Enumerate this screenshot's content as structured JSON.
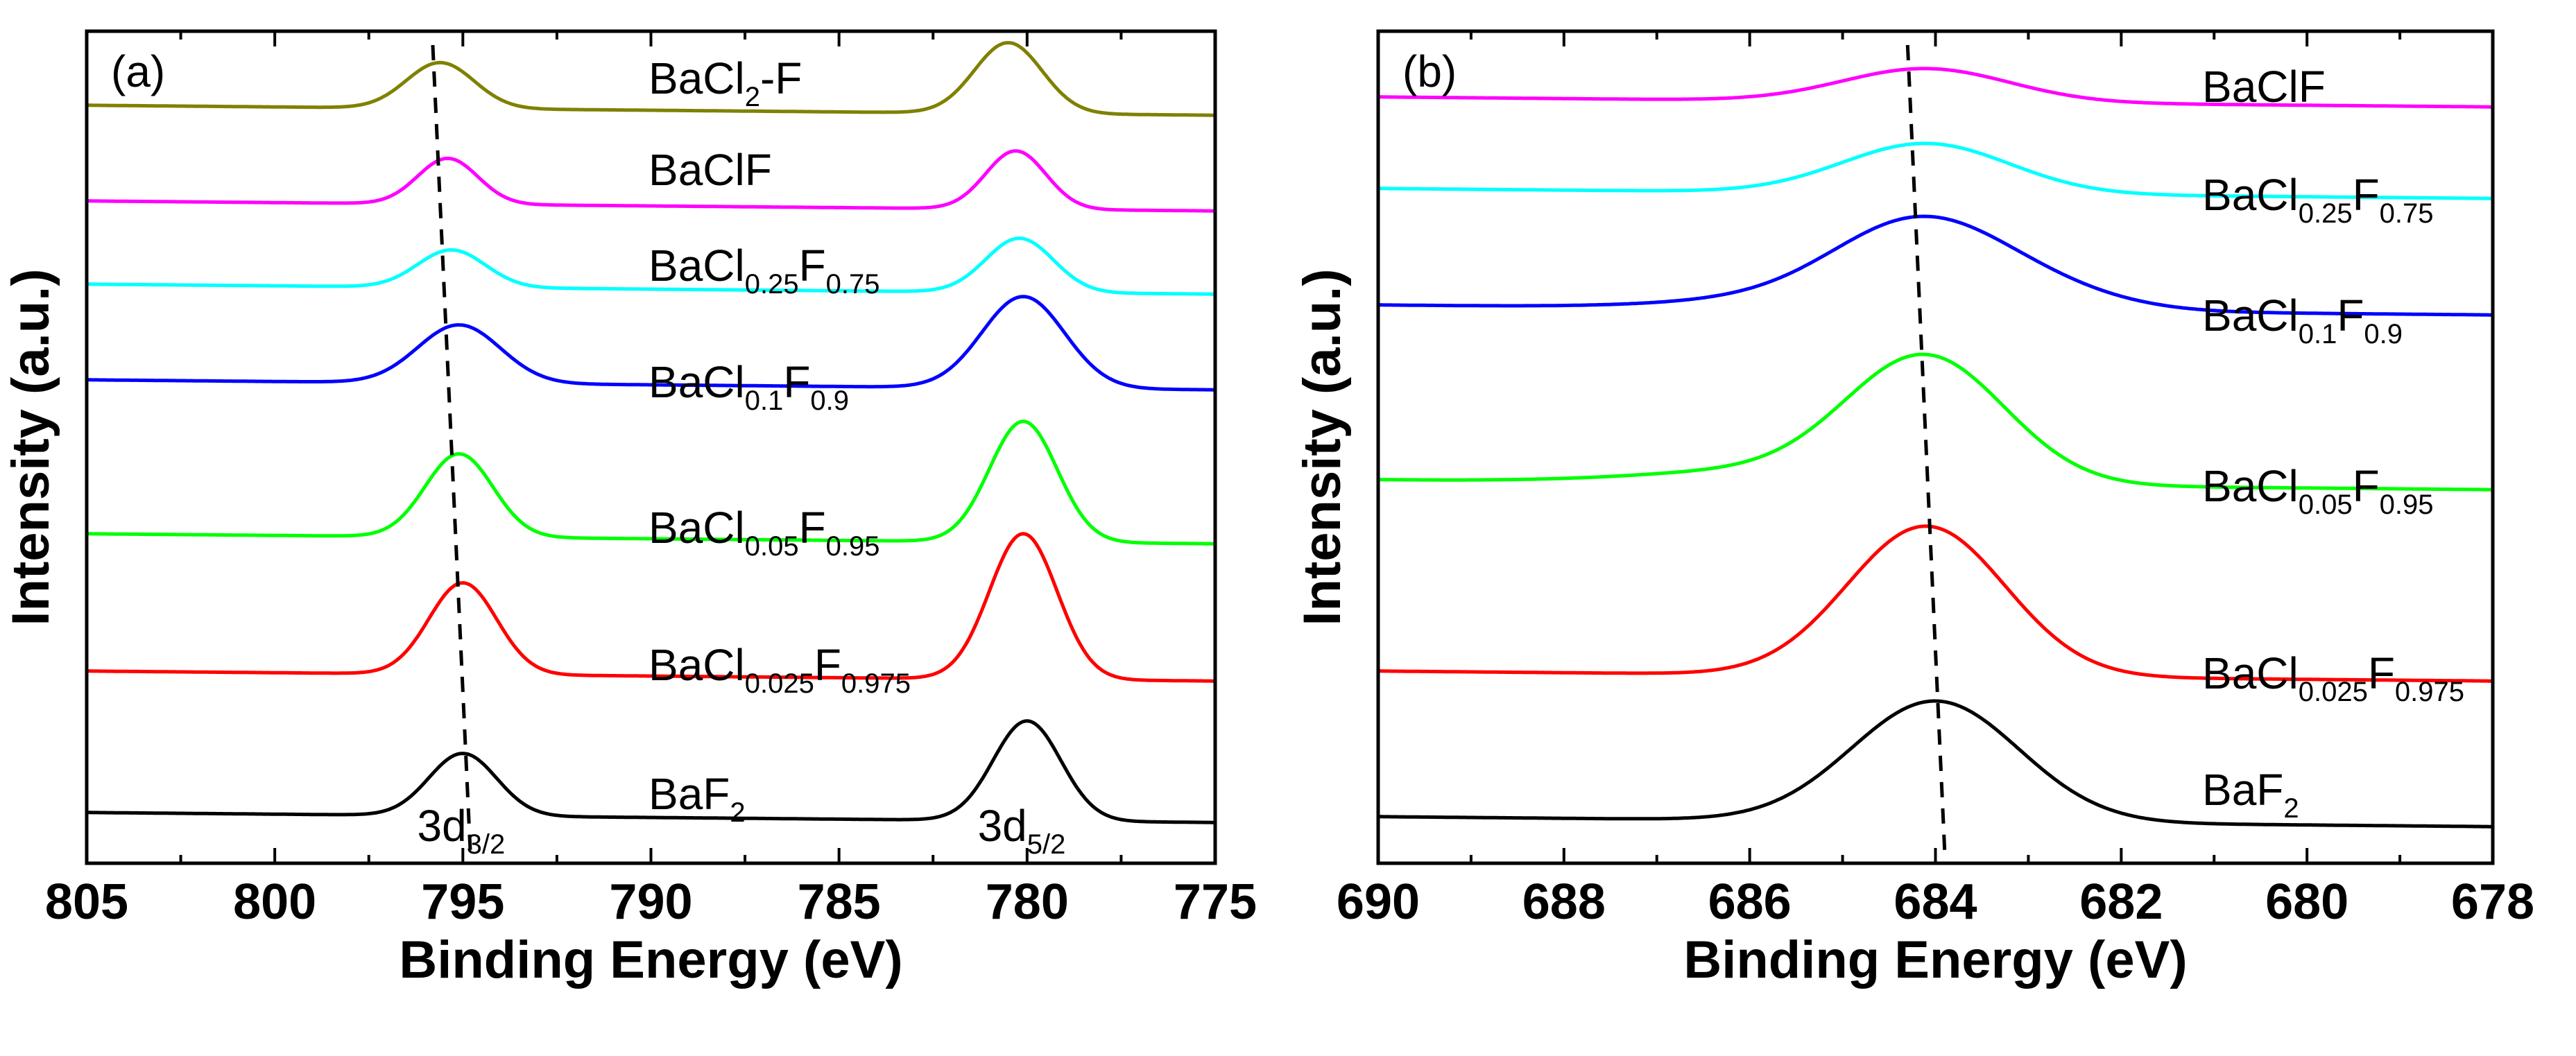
{
  "chart_data": [
    {
      "type": "line",
      "panel_label": "(a)",
      "xlabel": "Binding Energy (eV)",
      "ylabel": "Intensity (a.u.)",
      "xlim": [
        805,
        775
      ],
      "x_reversed": true,
      "xticks": [
        805,
        800,
        795,
        790,
        785,
        780,
        775
      ],
      "yticks": [],
      "peak_labels": [
        {
          "base": "3d",
          "sub": "3/2",
          "x": 795.2
        },
        {
          "base": "3d",
          "sub": "5/2",
          "x": 780.3
        }
      ],
      "guide_line": {
        "style": "dashed",
        "x_top": 795.8,
        "x_bottom": 794.8
      },
      "series": [
        {
          "name": "BaCl2-F",
          "label_parts": [
            {
              "t": "BaCl"
            },
            {
              "t": "2",
              "sub": true
            },
            {
              "t": "-F"
            }
          ],
          "color": "#808000",
          "baseline": 0.905,
          "peaks": [
            {
              "x": 795.6,
              "h": 0.055,
              "w": 0.9
            },
            {
              "x": 780.5,
              "h": 0.085,
              "w": 0.9
            }
          ]
        },
        {
          "name": "BaClF",
          "label_parts": [
            {
              "t": "BaClF"
            }
          ],
          "color": "#ff00ff",
          "baseline": 0.79,
          "peaks": [
            {
              "x": 795.4,
              "h": 0.055,
              "w": 0.8
            },
            {
              "x": 780.3,
              "h": 0.07,
              "w": 0.8
            }
          ]
        },
        {
          "name": "BaCl0.25F0.75",
          "label_parts": [
            {
              "t": "BaCl"
            },
            {
              "t": "0.25",
              "sub": true
            },
            {
              "t": "F"
            },
            {
              "t": "0.75",
              "sub": true
            }
          ],
          "color": "#00ffff",
          "baseline": 0.69,
          "peaks": [
            {
              "x": 795.3,
              "h": 0.045,
              "w": 0.9
            },
            {
              "x": 780.2,
              "h": 0.065,
              "w": 0.9
            }
          ]
        },
        {
          "name": "BaCl0.1F0.9",
          "label_parts": [
            {
              "t": "BaCl"
            },
            {
              "t": "0.1",
              "sub": true
            },
            {
              "t": "F"
            },
            {
              "t": "0.9",
              "sub": true
            }
          ],
          "color": "#0000ff",
          "baseline": 0.575,
          "peaks": [
            {
              "x": 795.1,
              "h": 0.07,
              "w": 1.1
            },
            {
              "x": 780.1,
              "h": 0.11,
              "w": 1.1
            }
          ]
        },
        {
          "name": "BaCl0.05F0.95",
          "label_parts": [
            {
              "t": "BaCl"
            },
            {
              "t": "0.05",
              "sub": true
            },
            {
              "t": "F"
            },
            {
              "t": "0.95",
              "sub": true
            }
          ],
          "color": "#00ff00",
          "baseline": 0.39,
          "peaks": [
            {
              "x": 795.1,
              "h": 0.1,
              "w": 0.9
            },
            {
              "x": 780.1,
              "h": 0.145,
              "w": 0.9
            }
          ]
        },
        {
          "name": "BaCl0.025F0.975",
          "label_parts": [
            {
              "t": "BaCl"
            },
            {
              "t": "0.025",
              "sub": true
            },
            {
              "t": "F"
            },
            {
              "t": "0.975",
              "sub": true
            }
          ],
          "color": "#ff0000",
          "baseline": 0.225,
          "peaks": [
            {
              "x": 795.0,
              "h": 0.11,
              "w": 0.9
            },
            {
              "x": 780.1,
              "h": 0.175,
              "w": 0.9
            }
          ]
        },
        {
          "name": "BaF2",
          "label_parts": [
            {
              "t": "BaF"
            },
            {
              "t": "2",
              "sub": true
            }
          ],
          "color": "#000000",
          "baseline": 0.055,
          "peaks": [
            {
              "x": 795.0,
              "h": 0.075,
              "w": 0.9
            },
            {
              "x": 780.0,
              "h": 0.12,
              "w": 0.9
            }
          ]
        }
      ]
    },
    {
      "type": "line",
      "panel_label": "(b)",
      "xlabel": "Binding Energy (eV)",
      "ylabel": "Intensity (a.u.)",
      "xlim": [
        690,
        678
      ],
      "x_reversed": true,
      "xticks": [
        690,
        688,
        686,
        684,
        682,
        680,
        678
      ],
      "yticks": [],
      "guide_line": {
        "style": "dashed",
        "x_top": 684.3,
        "x_bottom": 683.9
      },
      "series": [
        {
          "name": "BaClF",
          "label_parts": [
            {
              "t": "BaClF"
            }
          ],
          "color": "#ff00ff",
          "baseline": 0.915,
          "peaks": [
            {
              "x": 684.1,
              "h": 0.04,
              "w": 0.9
            }
          ]
        },
        {
          "name": "BaCl0.25F0.75",
          "label_parts": [
            {
              "t": "BaCl"
            },
            {
              "t": "0.25",
              "sub": true
            },
            {
              "t": "F"
            },
            {
              "t": "0.75",
              "sub": true
            }
          ],
          "color": "#00ffff",
          "baseline": 0.805,
          "peaks": [
            {
              "x": 684.1,
              "h": 0.06,
              "w": 0.9
            }
          ]
        },
        {
          "name": "BaCl0.1F0.9",
          "label_parts": [
            {
              "t": "BaCl"
            },
            {
              "t": "0.1",
              "sub": true
            },
            {
              "t": "F"
            },
            {
              "t": "0.9",
              "sub": true
            }
          ],
          "color": "#0000ff",
          "baseline": 0.665,
          "peaks": [
            {
              "x": 684.2,
              "h": 0.095,
              "w": 0.9
            },
            {
              "x": 683.0,
              "h": 0.025,
              "w": 0.9
            },
            {
              "x": 685.5,
              "h": 0.012,
              "w": 1.2
            }
          ]
        },
        {
          "name": "BaCl0.05F0.95",
          "label_parts": [
            {
              "t": "BaCl"
            },
            {
              "t": "0.05",
              "sub": true
            },
            {
              "t": "F"
            },
            {
              "t": "0.95",
              "sub": true
            }
          ],
          "color": "#00ff00",
          "baseline": 0.455,
          "peaks": [
            {
              "x": 684.1,
              "h": 0.15,
              "w": 0.85
            },
            {
              "x": 685.8,
              "h": 0.015,
              "w": 1.3
            }
          ]
        },
        {
          "name": "BaCl0.025F0.975",
          "label_parts": [
            {
              "t": "BaCl"
            },
            {
              "t": "0.025",
              "sub": true
            },
            {
              "t": "F"
            },
            {
              "t": "0.975",
              "sub": true
            }
          ],
          "color": "#ff0000",
          "baseline": 0.225,
          "peaks": [
            {
              "x": 684.1,
              "h": 0.18,
              "w": 0.85
            }
          ]
        },
        {
          "name": "BaF2",
          "label_parts": [
            {
              "t": "BaF"
            },
            {
              "t": "2",
              "sub": true
            }
          ],
          "color": "#000000",
          "baseline": 0.05,
          "peaks": [
            {
              "x": 684.0,
              "h": 0.145,
              "w": 0.9
            }
          ]
        }
      ]
    }
  ]
}
